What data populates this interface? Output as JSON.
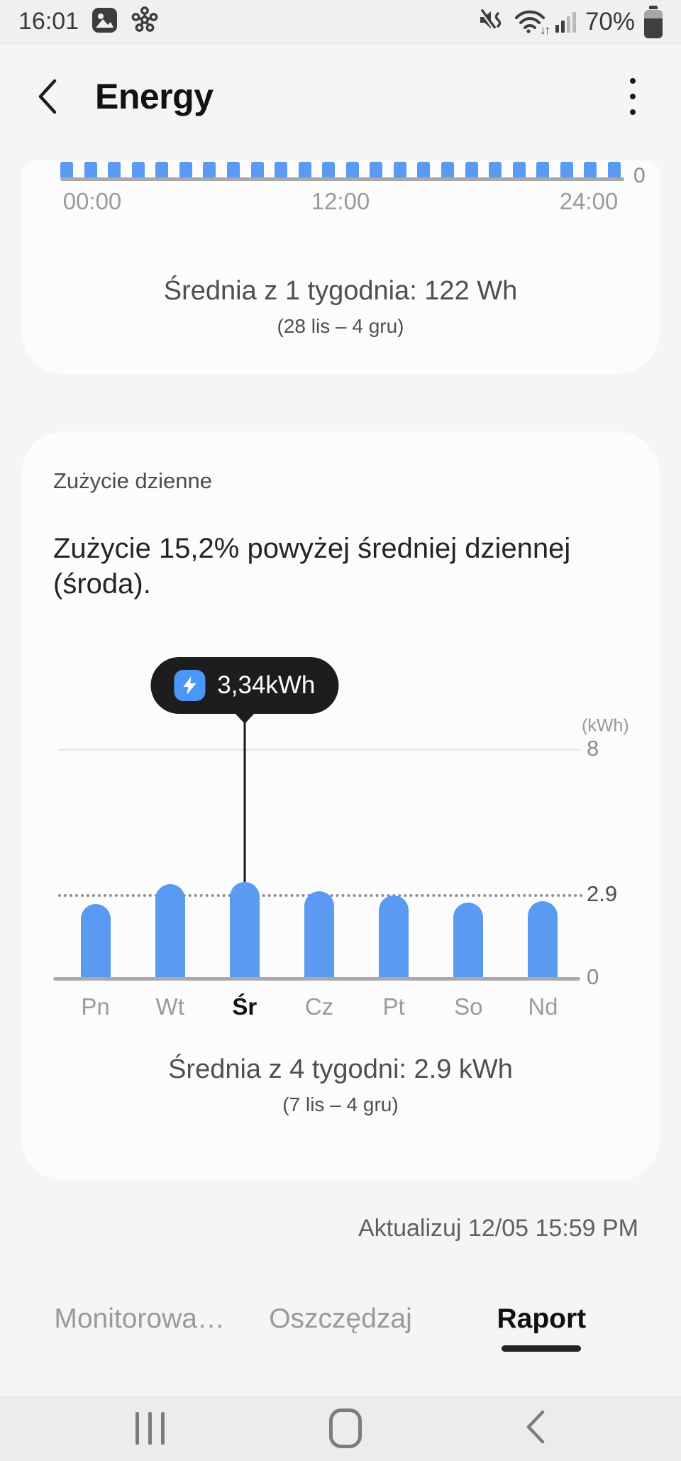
{
  "colors": {
    "accent_blue": "#5A9AF2",
    "tooltip_bg": "#1D1D1F",
    "tooltip_icon_blue": "#4B96F8",
    "page_bg": "#F5F5F6",
    "card_bg": "#FCFCFD",
    "baseline_gray": "#A9A9A9",
    "nav_bg": "#ECECEE"
  },
  "status_bar": {
    "time": "16:01",
    "battery_percent": "70%",
    "wifi_arrows": "↓↑"
  },
  "header": {
    "title": "Energy"
  },
  "hourly_card": {
    "y_zero_label": "0",
    "x_labels": [
      "00:00",
      "12:00",
      "24:00"
    ],
    "average_text": "Średnia z 1 tygodnia: 122 Wh",
    "range_text": "(28 lis – 4 gru)"
  },
  "daily_card": {
    "section_title": "Zużycie dzienne",
    "description": "Zużycie 15,2% powyżej średniej dziennej (środa).",
    "tooltip_label": "3,34kWh",
    "unit_label": "(kWh)",
    "average_text": "Średnia z 4 tygodni: 2.9 kWh",
    "range_text": "(7 lis – 4 gru)"
  },
  "update_text": "Aktualizuj 12/05 15:59 PM",
  "tabs": [
    {
      "label": "Monitorowa…",
      "active": false
    },
    {
      "label": "Oszczędzaj",
      "active": false
    },
    {
      "label": "Raport",
      "active": true
    }
  ],
  "chart_data": [
    {
      "type": "bar",
      "name": "hourly_usage",
      "title": "",
      "x_tick_labels": [
        "00:00",
        "12:00",
        "24:00"
      ],
      "y_tick_labels": [
        "0"
      ],
      "bar_count": 24,
      "values": [
        1,
        1,
        1,
        1,
        1,
        1,
        1,
        1,
        1,
        1,
        1,
        1,
        1,
        1,
        1,
        1,
        1,
        1,
        1,
        1,
        1,
        1,
        1,
        1
      ],
      "values_note": "24 uniform short bars, one per hour of the day",
      "average_annotation": "Średnia z 1 tygodnia: 122 Wh (28 lis – 4 gru)"
    },
    {
      "type": "bar",
      "name": "daily_usage",
      "categories": [
        "Pn",
        "Wt",
        "Śr",
        "Cz",
        "Pt",
        "So",
        "Nd"
      ],
      "values": [
        2.55,
        3.25,
        3.34,
        3.0,
        2.85,
        2.6,
        2.65
      ],
      "unit": "kWh",
      "ylim": [
        0,
        8
      ],
      "y_tick_labels": [
        "8",
        "2.9",
        "0"
      ],
      "average_line": 2.9,
      "highlight_index": 2,
      "tooltip": {
        "category": "Śr",
        "label": "3,34kWh",
        "value": 3.34
      },
      "average_annotation": "Średnia z 4 tygodni: 2.9 kWh (7 lis – 4 gru)"
    }
  ]
}
